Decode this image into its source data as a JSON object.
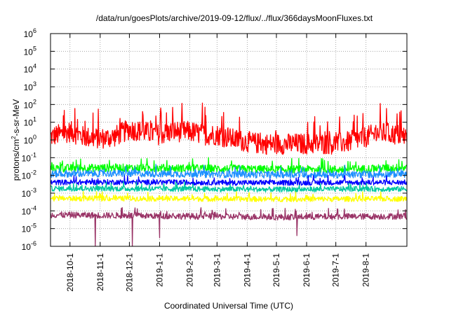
{
  "chart_data": {
    "type": "line",
    "title": "/data/run/goesPlots/archive/2019-09-12/flux/../flux/366daysMoonFluxes.txt",
    "xlabel": "Coordinated Universal Time (UTC)",
    "ylabel": {
      "base": "protons/cm",
      "sup": "2",
      "rest": "-s-sr-MeV"
    },
    "yscale": "log",
    "ylim": [
      1e-06,
      1000000.0
    ],
    "yticks": [
      {
        "mant": "10",
        "exp": "-6",
        "value": 1e-06
      },
      {
        "mant": "10",
        "exp": "-5",
        "value": 1e-05
      },
      {
        "mant": "10",
        "exp": "-4",
        "value": 0.0001
      },
      {
        "mant": "10",
        "exp": "-3",
        "value": 0.001
      },
      {
        "mant": "10",
        "exp": "-2",
        "value": 0.01
      },
      {
        "mant": "10",
        "exp": "-1",
        "value": 0.1
      },
      {
        "mant": "10",
        "exp": "0",
        "value": 1
      },
      {
        "mant": "10",
        "exp": "1",
        "value": 10
      },
      {
        "mant": "10",
        "exp": "2",
        "value": 100
      },
      {
        "mant": "10",
        "exp": "3",
        "value": 1000
      },
      {
        "mant": "10",
        "exp": "4",
        "value": 10000
      },
      {
        "mant": "10",
        "exp": "5",
        "value": 100000
      },
      {
        "mant": "10",
        "exp": "6",
        "value": 1000000
      }
    ],
    "xlim": [
      "2018-09-11",
      "2019-09-12"
    ],
    "xticks": [
      "2018-10-1",
      "2018-11-1",
      "2018-12-1",
      "2019-1-1",
      "2019-2-1",
      "2019-3-1",
      "2019-4-1",
      "2019-5-1",
      "2019-6-1",
      "2019-7-1",
      "2019-8-1"
    ],
    "xtick_dates": [
      "2018-10-01",
      "2018-11-01",
      "2018-12-01",
      "2019-01-01",
      "2019-02-01",
      "2019-03-01",
      "2019-04-01",
      "2019-05-01",
      "2019-06-01",
      "2019-07-01",
      "2019-08-01"
    ],
    "grid": true,
    "legend": "none",
    "series": [
      {
        "color": "#ff0000",
        "x": [
          "2018-09-11",
          "2018-10-01",
          "2018-10-15",
          "2018-11-01",
          "2018-11-15",
          "2018-12-01",
          "2018-12-15",
          "2019-01-01",
          "2019-01-15",
          "2019-02-01",
          "2019-02-15",
          "2019-03-01",
          "2019-03-15",
          "2019-04-01",
          "2019-04-15",
          "2019-05-01",
          "2019-05-15",
          "2019-06-01",
          "2019-06-15",
          "2019-07-01",
          "2019-07-15",
          "2019-08-01",
          "2019-08-15",
          "2019-09-01",
          "2019-09-12"
        ],
        "y": [
          1.5,
          3,
          1.5,
          1.2,
          1.5,
          4,
          3,
          2,
          3,
          3,
          2,
          2,
          1.2,
          0.8,
          0.6,
          0.6,
          0.6,
          0.6,
          0.6,
          0.6,
          0.8,
          1.5,
          2.5,
          2,
          1.5
        ],
        "spread": 1.2,
        "spikes": [
          [
            "2018-10-06",
            60
          ],
          [
            "2018-12-15",
            25
          ],
          [
            "2019-02-14",
            120
          ],
          [
            "2019-07-05",
            20
          ],
          [
            "2019-08-22",
            60
          ]
        ]
      },
      {
        "color": "#00ff00",
        "x": [
          "2018-09-11",
          "2018-11-15",
          "2019-02-01",
          "2019-05-01",
          "2019-07-15",
          "2019-09-12"
        ],
        "y": [
          0.025,
          0.027,
          0.025,
          0.022,
          0.022,
          0.028
        ],
        "spread": 0.45
      },
      {
        "color": "#1e90ff",
        "x": [
          "2018-09-11",
          "2018-11-15",
          "2019-02-01",
          "2019-05-01",
          "2019-07-15",
          "2019-09-12"
        ],
        "y": [
          0.012,
          0.013,
          0.012,
          0.011,
          0.011,
          0.012
        ],
        "spread": 0.4
      },
      {
        "color": "#0000ff",
        "x": [
          "2018-09-11",
          "2018-11-15",
          "2019-02-01",
          "2019-05-01",
          "2019-07-15",
          "2019-09-12"
        ],
        "y": [
          0.004,
          0.0042,
          0.004,
          0.0038,
          0.004,
          0.004
        ],
        "spread": 0.3
      },
      {
        "color": "#00c8a0",
        "x": [
          "2018-09-11",
          "2018-11-15",
          "2019-02-01",
          "2019-05-01",
          "2019-07-15",
          "2019-09-12"
        ],
        "y": [
          0.0018,
          0.0018,
          0.0017,
          0.0016,
          0.0017,
          0.0017
        ],
        "spread": 0.3
      },
      {
        "color": "#ffff00",
        "x": [
          "2018-09-11",
          "2018-11-15",
          "2019-02-01",
          "2019-05-01",
          "2019-07-15",
          "2019-09-12"
        ],
        "y": [
          0.0005,
          0.0005,
          0.00048,
          0.00046,
          0.00047,
          0.00048
        ],
        "spread": 0.3
      },
      {
        "color": "#993366",
        "x": [
          "2018-09-11",
          "2018-11-15",
          "2019-02-01",
          "2019-05-01",
          "2019-07-15",
          "2019-09-12"
        ],
        "y": [
          6e-05,
          5.5e-05,
          5e-05,
          4.5e-05,
          4.8e-05,
          5e-05
        ],
        "spread": 0.35,
        "dips": [
          [
            "2018-10-27",
            1e-06
          ],
          [
            "2018-12-04",
            1e-06
          ],
          [
            "2019-01-01",
            3e-06
          ],
          [
            "2019-05-22",
            4e-06
          ]
        ]
      }
    ]
  }
}
